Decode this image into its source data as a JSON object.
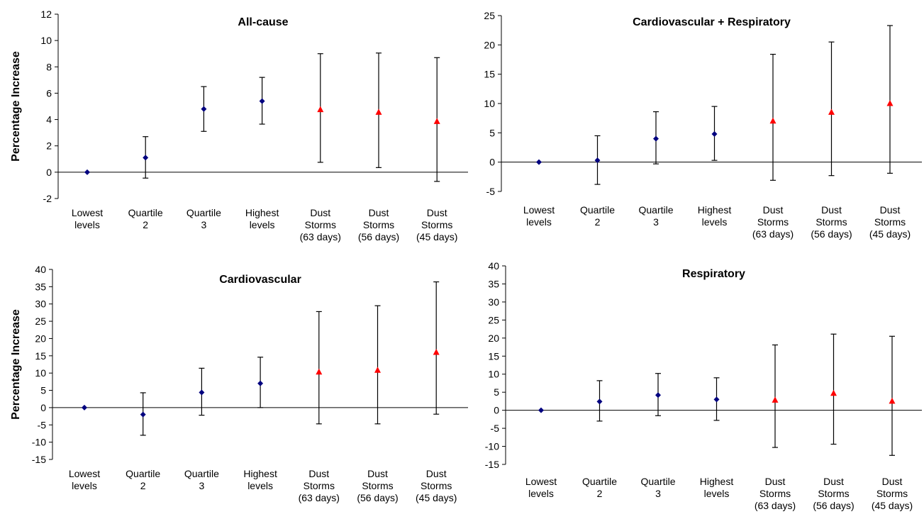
{
  "chart_data": [
    {
      "type": "scatter",
      "title": "All-cause",
      "ylabel": "Percentage Increase",
      "xlabel": "",
      "ylim": [
        -2,
        12
      ],
      "yticks": [
        -2,
        0,
        2,
        4,
        6,
        8,
        10,
        12
      ],
      "grid": false,
      "categories": [
        [
          "Lowest",
          "levels"
        ],
        [
          "Quartile",
          "2"
        ],
        [
          "Quartile",
          "3"
        ],
        [
          "Highest",
          "levels"
        ],
        [
          "Dust",
          "Storms",
          "(63 days)"
        ],
        [
          "Dust",
          "Storms",
          "(56 days)"
        ],
        [
          "Dust",
          "Storms",
          "(45 days)"
        ]
      ],
      "values": [
        0,
        1.1,
        4.8,
        5.4,
        4.75,
        4.55,
        3.85
      ],
      "lower": [
        0,
        -0.45,
        3.1,
        3.65,
        0.75,
        0.35,
        -0.7
      ],
      "upper": [
        0,
        2.7,
        6.5,
        7.2,
        9.0,
        9.05,
        8.7
      ],
      "markers": [
        "diamond",
        "diamond",
        "diamond",
        "diamond",
        "triangle",
        "triangle",
        "triangle"
      ]
    },
    {
      "type": "scatter",
      "title": "Cardiovascular + Respiratory",
      "ylabel": "",
      "xlabel": "",
      "ylim": [
        -5,
        25
      ],
      "yticks": [
        -5,
        0,
        5,
        10,
        15,
        20,
        25
      ],
      "grid": false,
      "categories": [
        [
          "Lowest",
          "levels"
        ],
        [
          "Quartile",
          "2"
        ],
        [
          "Quartile",
          "3"
        ],
        [
          "Highest",
          "levels"
        ],
        [
          "Dust",
          "Storms",
          "(63 days)"
        ],
        [
          "Dust",
          "Storms",
          "(56 days)"
        ],
        [
          "Dust",
          "Storms",
          "(45 days)"
        ]
      ],
      "values": [
        0,
        0.3,
        4.0,
        4.8,
        7.0,
        8.5,
        10.0
      ],
      "lower": [
        0,
        -3.8,
        -0.3,
        0.3,
        -3.1,
        -2.3,
        -1.9
      ],
      "upper": [
        0,
        4.5,
        8.6,
        9.5,
        18.4,
        20.5,
        23.3
      ],
      "markers": [
        "diamond",
        "diamond",
        "diamond",
        "diamond",
        "triangle",
        "triangle",
        "triangle"
      ]
    },
    {
      "type": "scatter",
      "title": "Cardiovascular",
      "ylabel": "Percentage Increase",
      "xlabel": "",
      "ylim": [
        -15,
        40
      ],
      "yticks": [
        -15,
        -10,
        -5,
        0,
        5,
        10,
        15,
        20,
        25,
        30,
        35,
        40
      ],
      "grid": false,
      "categories": [
        [
          "Lowest",
          "levels"
        ],
        [
          "Quartile",
          "2"
        ],
        [
          "Quartile",
          "3"
        ],
        [
          "Highest",
          "levels"
        ],
        [
          "Dust",
          "Storms",
          "(63 days)"
        ],
        [
          "Dust",
          "Storms",
          "(56 days)"
        ],
        [
          "Dust",
          "Storms",
          "(45 days)"
        ]
      ],
      "values": [
        0,
        -2.0,
        4.4,
        7.0,
        10.3,
        10.8,
        16.0
      ],
      "lower": [
        0,
        -8.0,
        -2.2,
        0.0,
        -4.7,
        -4.7,
        -1.9
      ],
      "upper": [
        0,
        4.3,
        11.4,
        14.6,
        27.8,
        29.5,
        36.4
      ],
      "markers": [
        "diamond",
        "diamond",
        "diamond",
        "diamond",
        "triangle",
        "triangle",
        "triangle"
      ]
    },
    {
      "type": "scatter",
      "title": "Respiratory",
      "ylabel": "",
      "xlabel": "",
      "ylim": [
        -15,
        40
      ],
      "yticks": [
        -15,
        -10,
        -5,
        0,
        5,
        10,
        15,
        20,
        25,
        30,
        35,
        40
      ],
      "grid": false,
      "categories": [
        [
          "Lowest",
          "levels"
        ],
        [
          "Quartile",
          "2"
        ],
        [
          "Quartile",
          "3"
        ],
        [
          "Highest",
          "levels"
        ],
        [
          "Dust",
          "Storms",
          "(63 days)"
        ],
        [
          "Dust",
          "Storms",
          "(56 days)"
        ],
        [
          "Dust",
          "Storms",
          "(45 days)"
        ]
      ],
      "values": [
        0,
        2.4,
        4.2,
        3.0,
        2.8,
        4.7,
        2.5
      ],
      "lower": [
        0,
        -3.0,
        -1.5,
        -2.8,
        -10.3,
        -9.4,
        -12.5
      ],
      "upper": [
        0,
        8.2,
        10.2,
        9.0,
        18.1,
        21.1,
        20.5
      ],
      "markers": [
        "diamond",
        "diamond",
        "diamond",
        "diamond",
        "triangle",
        "triangle",
        "triangle"
      ]
    }
  ],
  "colors": {
    "diamond": "#00007f",
    "triangle": "#ff0000",
    "axis": "#000000",
    "errorbar": "#000000"
  }
}
